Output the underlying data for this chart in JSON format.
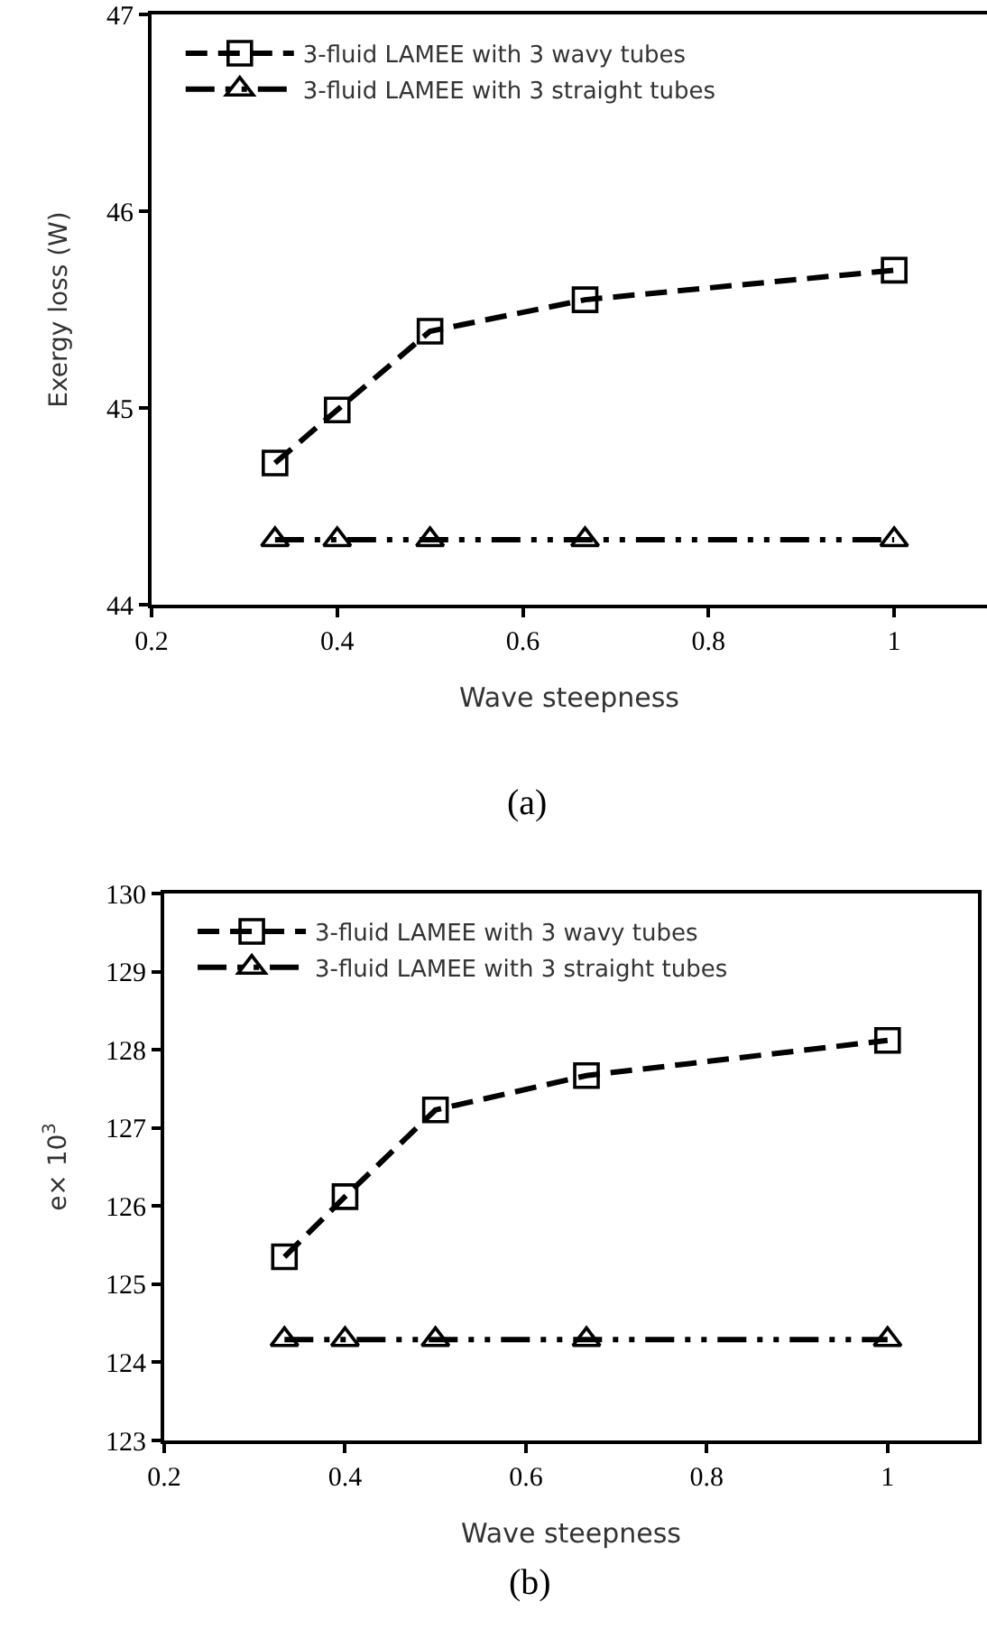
{
  "chart_data": [
    {
      "type": "line",
      "xlabel": "Wave steepness",
      "ylabel": "Exergy loss (W)",
      "annotations": [
        "(a)"
      ],
      "x": [
        0.333,
        0.4,
        0.5,
        0.667,
        1
      ],
      "series": [
        {
          "name": "3-fluid LAMEE with 3 wavy tubes",
          "color": "#000000",
          "marker": "square",
          "line_style": "dashed",
          "values": [
            44.72,
            44.99,
            45.39,
            45.55,
            45.7
          ]
        },
        {
          "name": "3-fluid LAMEE with 3 straight tubes",
          "color": "#000000",
          "marker": "triangle",
          "line_style": "dashdotdot",
          "values": [
            44.33,
            44.33,
            44.33,
            44.33,
            44.33
          ]
        }
      ],
      "xlim": [
        0.2,
        1.1
      ],
      "xticks": [
        0.2,
        0.4,
        0.6,
        0.8,
        1
      ],
      "ylim": [
        44,
        47
      ],
      "yticks": [
        44,
        45,
        46,
        47
      ],
      "grid": false,
      "legend": "top left"
    },
    {
      "type": "line",
      "xlabel": "Wave steepness",
      "ylabel": "e× 10$^{3}$",
      "annotations": [
        "(b)"
      ],
      "x": [
        0.333,
        0.4,
        0.5,
        0.667,
        1
      ],
      "series": [
        {
          "name": "3-fluid LAMEE with 3 wavy tubes",
          "color": "#000000",
          "marker": "square",
          "line_style": "dashed",
          "values": [
            125.35,
            126.12,
            127.23,
            127.67,
            128.12
          ]
        },
        {
          "name": "3-fluid LAMEE with 3 straight tubes",
          "color": "#000000",
          "marker": "triangle",
          "line_style": "dashdotdot",
          "values": [
            124.29,
            124.29,
            124.29,
            124.29,
            124.29
          ]
        }
      ],
      "xlim": [
        0.2,
        1.1
      ],
      "xticks": [
        0.2,
        0.4,
        0.6,
        0.8,
        1
      ],
      "ylim": [
        123,
        130
      ],
      "yticks": [
        123,
        124,
        125,
        126,
        127,
        128,
        129,
        130
      ],
      "grid": false,
      "legend": "top left"
    }
  ]
}
